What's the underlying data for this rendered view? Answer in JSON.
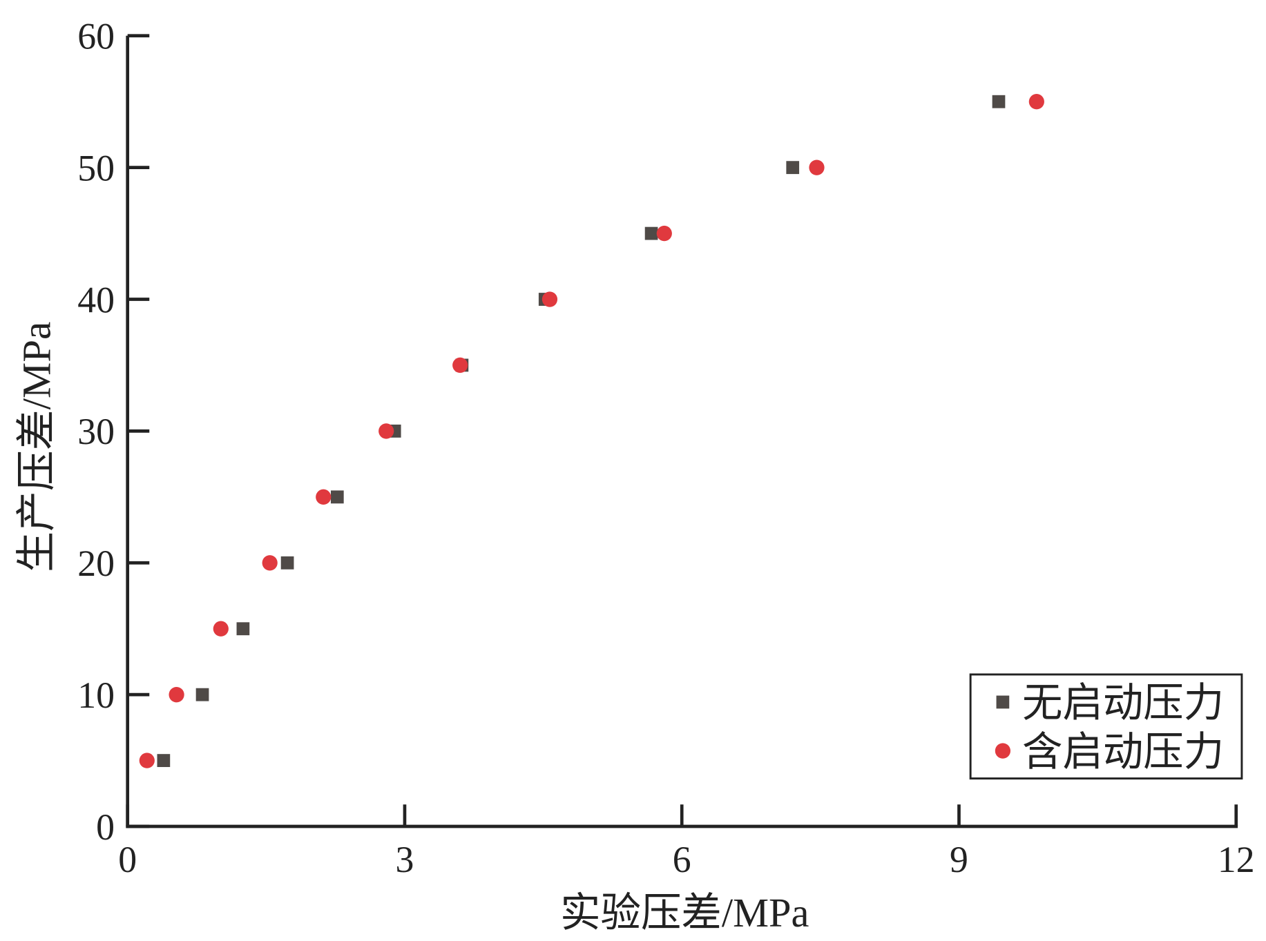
{
  "chart_data": {
    "type": "scatter",
    "xlabel": "实验压差/MPa",
    "ylabel": "生产压差/MPa",
    "xlim": [
      0,
      12
    ],
    "xticks": [
      0,
      3,
      6,
      9,
      12
    ],
    "ylim": [
      0,
      60
    ],
    "yticks": [
      0,
      10,
      20,
      30,
      40,
      50,
      60
    ],
    "legend": "lower right",
    "series": [
      {
        "name": "无启动压力",
        "color": "#4f4a47",
        "marker": "square",
        "x": [
          0.39,
          0.81,
          1.25,
          1.73,
          2.27,
          2.89,
          3.62,
          4.52,
          5.67,
          7.2,
          9.43
        ],
        "values": [
          5,
          10,
          15,
          20,
          25,
          30,
          35,
          40,
          45,
          50,
          55
        ]
      },
      {
        "name": "含启动压力",
        "color": "#e0393e",
        "marker": "circle",
        "x": [
          0.21,
          0.53,
          1.01,
          1.54,
          2.12,
          2.8,
          3.6,
          4.57,
          5.81,
          7.46,
          9.84
        ],
        "values": [
          5,
          10,
          15,
          20,
          25,
          30,
          35,
          40,
          45,
          50,
          55
        ]
      }
    ]
  }
}
